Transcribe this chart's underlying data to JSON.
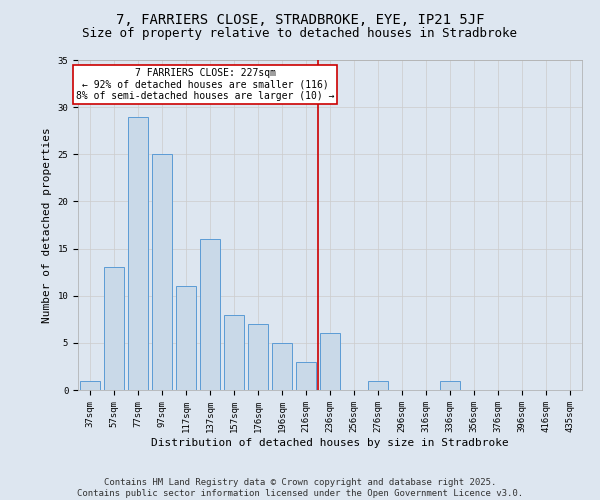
{
  "title1": "7, FARRIERS CLOSE, STRADBROKE, EYE, IP21 5JF",
  "title2": "Size of property relative to detached houses in Stradbroke",
  "xlabel": "Distribution of detached houses by size in Stradbroke",
  "ylabel": "Number of detached properties",
  "bar_labels": [
    "37sqm",
    "57sqm",
    "77sqm",
    "97sqm",
    "117sqm",
    "137sqm",
    "157sqm",
    "176sqm",
    "196sqm",
    "216sqm",
    "236sqm",
    "256sqm",
    "276sqm",
    "296sqm",
    "316sqm",
    "336sqm",
    "356sqm",
    "376sqm",
    "396sqm",
    "416sqm",
    "435sqm"
  ],
  "bar_values": [
    1,
    13,
    29,
    25,
    11,
    16,
    8,
    7,
    5,
    3,
    6,
    0,
    1,
    0,
    0,
    1,
    0,
    0,
    0,
    0,
    0
  ],
  "bar_color": "#c9d9e8",
  "bar_edge_color": "#5b9bd5",
  "vline_x": 9.5,
  "vline_color": "#cc0000",
  "annotation_text": "7 FARRIERS CLOSE: 227sqm\n← 92% of detached houses are smaller (116)\n8% of semi-detached houses are larger (10) →",
  "annotation_box_color": "#ffffff",
  "annotation_box_edge": "#cc0000",
  "ylim": [
    0,
    35
  ],
  "yticks": [
    0,
    5,
    10,
    15,
    20,
    25,
    30,
    35
  ],
  "grid_color": "#cccccc",
  "bg_color": "#dde6f0",
  "footer": "Contains HM Land Registry data © Crown copyright and database right 2025.\nContains public sector information licensed under the Open Government Licence v3.0.",
  "title_fontsize": 10,
  "subtitle_fontsize": 9,
  "xlabel_fontsize": 8,
  "ylabel_fontsize": 8,
  "tick_fontsize": 6.5,
  "footer_fontsize": 6.5,
  "annot_fontsize": 7
}
